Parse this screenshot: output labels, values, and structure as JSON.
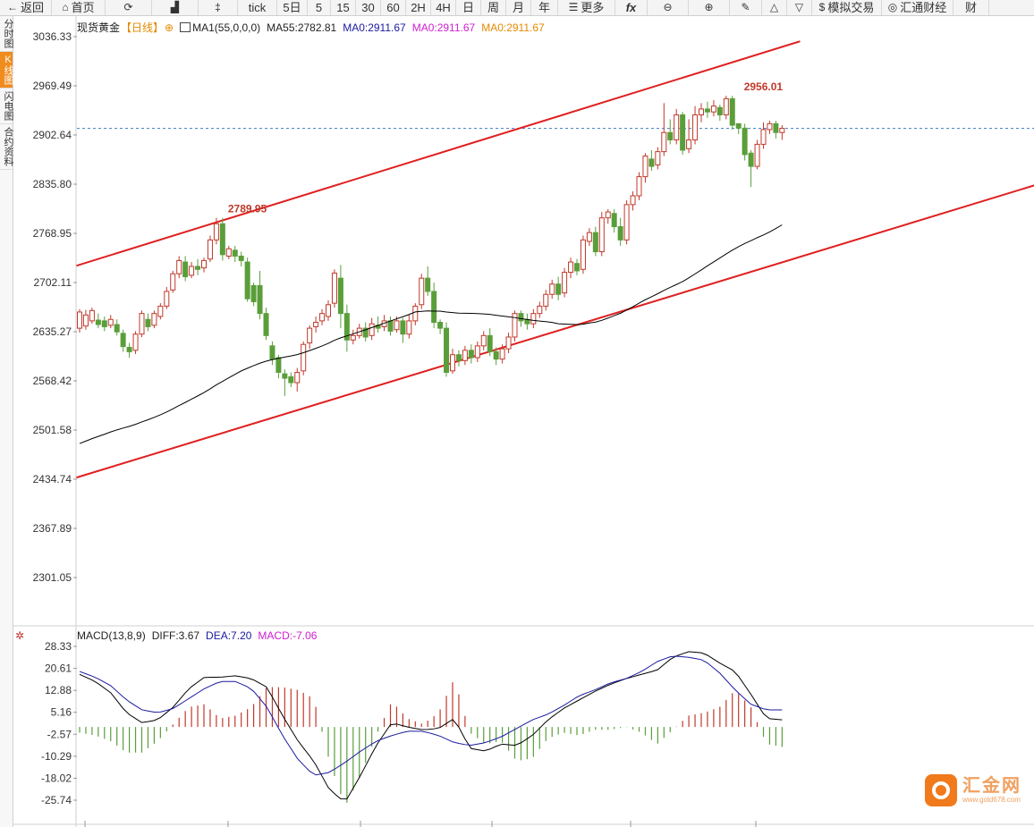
{
  "toolbar": [
    {
      "icon": "←",
      "label": "返回",
      "name": "back-button",
      "w": 58
    },
    {
      "icon": "⌂",
      "label": "首页",
      "name": "home-button",
      "w": 60
    },
    {
      "icon": "⟳",
      "label": "",
      "name": "refresh-button",
      "w": 52
    },
    {
      "icon": "▟",
      "label": "",
      "name": "bar-chart-button",
      "w": 52
    },
    {
      "icon": "‡",
      "label": "",
      "name": "candle-chart-button",
      "w": 44
    },
    {
      "icon": "",
      "label": "tick",
      "name": "period-tick",
      "w": 44
    },
    {
      "icon": "",
      "label": "5日",
      "name": "period-5day",
      "w": 34
    },
    {
      "icon": "",
      "label": "5",
      "name": "period-5",
      "w": 26
    },
    {
      "icon": "",
      "label": "15",
      "name": "period-15",
      "w": 28
    },
    {
      "icon": "",
      "label": "30",
      "name": "period-30",
      "w": 28
    },
    {
      "icon": "",
      "label": "60",
      "name": "period-60",
      "w": 28
    },
    {
      "icon": "",
      "label": "2H",
      "name": "period-2h",
      "w": 28
    },
    {
      "icon": "",
      "label": "4H",
      "name": "period-4h",
      "w": 28
    },
    {
      "icon": "",
      "label": "日",
      "name": "period-day",
      "w": 28
    },
    {
      "icon": "",
      "label": "周",
      "name": "period-week",
      "w": 28
    },
    {
      "icon": "",
      "label": "月",
      "name": "period-month",
      "w": 28
    },
    {
      "icon": "",
      "label": "年",
      "name": "period-year",
      "w": 30
    },
    {
      "icon": "☰",
      "label": "更多",
      "name": "more-button",
      "w": 64
    },
    {
      "icon": "",
      "label": "fx",
      "name": "formula-button",
      "w": 36
    },
    {
      "icon": "⊖",
      "label": "",
      "name": "zoom-out-button",
      "w": 46
    },
    {
      "icon": "⊕",
      "label": "",
      "name": "zoom-in-button",
      "w": 46
    },
    {
      "icon": "✎",
      "label": "",
      "name": "draw-button",
      "w": 36
    },
    {
      "icon": "△",
      "label": "",
      "name": "triangle-button",
      "w": 28
    },
    {
      "icon": "▽",
      "label": "",
      "name": "down-button",
      "w": 28
    },
    {
      "icon": "$",
      "label": "模拟交易",
      "name": "sim-trade-button",
      "w": 78
    },
    {
      "icon": "◎",
      "label": "汇通财经",
      "name": "huitong-button",
      "w": 80
    },
    {
      "icon": "",
      "label": "财",
      "name": "finance-button",
      "w": 40
    }
  ],
  "sidebar": [
    {
      "label": "分时图",
      "active": false
    },
    {
      "label": "K线图",
      "active": true
    },
    {
      "label": "闪电图",
      "active": false
    },
    {
      "label": "合约资料",
      "active": false
    }
  ],
  "legend": {
    "symbol": "现货黄金",
    "period": "【日线】",
    "ma1": "MA1(55,0,0,0)",
    "ma55": "MA55:2782.81",
    "ma0a": "MA0:2911.67",
    "ma0b": "MA0:2911.67",
    "ma0c": "MA0:2911.67"
  },
  "macd_legend": {
    "name": "MACD(13,8,9)",
    "diff": "DIFF:3.67",
    "dea": "DEA:7.20",
    "macd": "MACD:-7.06"
  },
  "price_axis": [
    "3036.33",
    "2969.49",
    "2902.64",
    "2835.80",
    "2768.95",
    "2702.11",
    "2635.27",
    "2568.42",
    "2501.58",
    "2434.74",
    "2367.89",
    "2301.05"
  ],
  "macd_axis": [
    "28.33",
    "20.61",
    "12.88",
    "5.16",
    "-2.57",
    "-10.29",
    "-18.02",
    "-25.74"
  ],
  "annotations": {
    "high": "2956.01",
    "left_high": "2789.95"
  },
  "colors": {
    "up": "#c0392b",
    "down": "#5a9e3a",
    "ma": "#000000",
    "channel": "#e02020",
    "diff": "#000000",
    "dea": "#1a1aa0",
    "ref": "#3a7bc8"
  },
  "watermark": {
    "name": "汇金网",
    "url": "www.gold678.com"
  },
  "chart_data": {
    "type": "candlestick",
    "title": "现货黄金 【日线】",
    "ylim": [
      2270,
      3050
    ],
    "last_price": 2911.67,
    "ma55_last": 2782.81,
    "candles": [
      [
        2640,
        2662,
        2634,
        2666
      ],
      [
        2643,
        2658,
        2638,
        2665
      ],
      [
        2650,
        2664,
        2646,
        2668
      ],
      [
        2651,
        2645,
        2640,
        2660
      ],
      [
        2650,
        2642,
        2636,
        2656
      ],
      [
        2644,
        2652,
        2640,
        2658
      ],
      [
        2645,
        2635,
        2630,
        2652
      ],
      [
        2633,
        2615,
        2608,
        2638
      ],
      [
        2614,
        2608,
        2600,
        2620
      ],
      [
        2610,
        2632,
        2605,
        2636
      ],
      [
        2632,
        2660,
        2628,
        2664
      ],
      [
        2652,
        2642,
        2636,
        2660
      ],
      [
        2644,
        2660,
        2640,
        2664
      ],
      [
        2656,
        2670,
        2652,
        2674
      ],
      [
        2670,
        2690,
        2666,
        2696
      ],
      [
        2692,
        2714,
        2688,
        2718
      ],
      [
        2714,
        2732,
        2708,
        2738
      ],
      [
        2730,
        2710,
        2704,
        2738
      ],
      [
        2712,
        2724,
        2708,
        2730
      ],
      [
        2724,
        2720,
        2712,
        2734
      ],
      [
        2722,
        2732,
        2716,
        2736
      ],
      [
        2734,
        2760,
        2730,
        2766
      ],
      [
        2760,
        2782,
        2754,
        2790
      ],
      [
        2782,
        2740,
        2732,
        2790
      ],
      [
        2738,
        2748,
        2734,
        2752
      ],
      [
        2746,
        2738,
        2730,
        2752
      ],
      [
        2738,
        2732,
        2724,
        2744
      ],
      [
        2730,
        2680,
        2676,
        2736
      ],
      [
        2698,
        2676,
        2670,
        2702
      ],
      [
        2698,
        2660,
        2652,
        2718
      ],
      [
        2660,
        2630,
        2624,
        2668
      ],
      [
        2616,
        2598,
        2590,
        2622
      ],
      [
        2600,
        2580,
        2572,
        2604
      ],
      [
        2578,
        2572,
        2548,
        2584
      ],
      [
        2574,
        2566,
        2560,
        2580
      ],
      [
        2566,
        2580,
        2554,
        2586
      ],
      [
        2582,
        2618,
        2576,
        2622
      ],
      [
        2620,
        2640,
        2612,
        2644
      ],
      [
        2642,
        2648,
        2634,
        2656
      ],
      [
        2650,
        2660,
        2644,
        2666
      ],
      [
        2656,
        2672,
        2650,
        2678
      ],
      [
        2674,
        2715,
        2668,
        2720
      ],
      [
        2708,
        2660,
        2640,
        2726
      ],
      [
        2660,
        2624,
        2608,
        2672
      ],
      [
        2624,
        2630,
        2618,
        2638
      ],
      [
        2630,
        2640,
        2626,
        2646
      ],
      [
        2640,
        2628,
        2622,
        2648
      ],
      [
        2630,
        2646,
        2624,
        2654
      ],
      [
        2644,
        2640,
        2634,
        2656
      ],
      [
        2642,
        2650,
        2636,
        2658
      ],
      [
        2650,
        2636,
        2630,
        2656
      ],
      [
        2638,
        2650,
        2634,
        2656
      ],
      [
        2650,
        2632,
        2620,
        2654
      ],
      [
        2632,
        2650,
        2626,
        2658
      ],
      [
        2650,
        2670,
        2644,
        2674
      ],
      [
        2672,
        2708,
        2666,
        2714
      ],
      [
        2708,
        2690,
        2684,
        2724
      ],
      [
        2690,
        2648,
        2640,
        2702
      ],
      [
        2648,
        2640,
        2632,
        2652
      ],
      [
        2640,
        2580,
        2574,
        2648
      ],
      [
        2582,
        2604,
        2578,
        2612
      ],
      [
        2604,
        2596,
        2588,
        2610
      ],
      [
        2596,
        2610,
        2590,
        2616
      ],
      [
        2610,
        2600,
        2592,
        2618
      ],
      [
        2600,
        2616,
        2594,
        2622
      ],
      [
        2616,
        2630,
        2610,
        2636
      ],
      [
        2630,
        2608,
        2602,
        2640
      ],
      [
        2608,
        2598,
        2590,
        2614
      ],
      [
        2598,
        2612,
        2592,
        2618
      ],
      [
        2612,
        2628,
        2606,
        2634
      ],
      [
        2628,
        2660,
        2622,
        2664
      ],
      [
        2660,
        2650,
        2642,
        2664
      ],
      [
        2652,
        2646,
        2638,
        2660
      ],
      [
        2646,
        2660,
        2640,
        2666
      ],
      [
        2660,
        2670,
        2654,
        2676
      ],
      [
        2670,
        2686,
        2664,
        2692
      ],
      [
        2686,
        2700,
        2680,
        2706
      ],
      [
        2700,
        2686,
        2678,
        2710
      ],
      [
        2688,
        2716,
        2682,
        2722
      ],
      [
        2716,
        2730,
        2708,
        2736
      ],
      [
        2728,
        2718,
        2712,
        2734
      ],
      [
        2720,
        2760,
        2714,
        2766
      ],
      [
        2758,
        2770,
        2752,
        2776
      ],
      [
        2770,
        2744,
        2738,
        2778
      ],
      [
        2744,
        2790,
        2738,
        2798
      ],
      [
        2790,
        2798,
        2782,
        2802
      ],
      [
        2796,
        2778,
        2770,
        2802
      ],
      [
        2778,
        2760,
        2752,
        2790
      ],
      [
        2760,
        2808,
        2754,
        2814
      ],
      [
        2808,
        2820,
        2800,
        2826
      ],
      [
        2820,
        2846,
        2814,
        2852
      ],
      [
        2846,
        2874,
        2838,
        2878
      ],
      [
        2870,
        2860,
        2854,
        2882
      ],
      [
        2862,
        2880,
        2856,
        2886
      ],
      [
        2880,
        2906,
        2874,
        2946
      ],
      [
        2906,
        2896,
        2890,
        2924
      ],
      [
        2896,
        2930,
        2890,
        2938
      ],
      [
        2930,
        2882,
        2876,
        2934
      ],
      [
        2884,
        2896,
        2878,
        2924
      ],
      [
        2896,
        2930,
        2890,
        2942
      ],
      [
        2930,
        2938,
        2920,
        2946
      ],
      [
        2938,
        2934,
        2926,
        2948
      ],
      [
        2934,
        2942,
        2928,
        2950
      ],
      [
        2940,
        2930,
        2922,
        2944
      ],
      [
        2930,
        2952,
        2924,
        2956
      ],
      [
        2952,
        2916,
        2910,
        2956
      ],
      [
        2918,
        2912,
        2904,
        2918
      ],
      [
        2912,
        2876,
        2868,
        2918
      ],
      [
        2878,
        2860,
        2832,
        2882
      ],
      [
        2860,
        2890,
        2856,
        2896
      ],
      [
        2890,
        2910,
        2884,
        2920
      ],
      [
        2910,
        2918,
        2904,
        2922
      ],
      [
        2918,
        2906,
        2898,
        2922
      ],
      [
        2906,
        2911.67,
        2896,
        2916
      ]
    ],
    "macd": {
      "diff": [
        18.5,
        16,
        12,
        5,
        1.5,
        2.5,
        7,
        13.5,
        17.5,
        17.5,
        18,
        17,
        14,
        4,
        -5,
        -12,
        -22,
        -26.5,
        -17,
        -6.5,
        1.5,
        0,
        -1,
        -0.5,
        3,
        -7.5,
        -8.5,
        -6,
        -6.5,
        -3,
        2.5,
        6.5,
        9.5,
        12.5,
        15,
        17,
        18.5,
        20,
        24.5,
        26.5,
        26,
        22.5,
        19.5,
        11.5,
        3,
        2.5
      ],
      "dea": [
        19.5,
        17.5,
        14.5,
        9.5,
        6,
        5,
        6.5,
        10,
        13.5,
        16,
        16,
        13.5,
        7,
        -3,
        -11.5,
        -17,
        -16,
        -12.5,
        -8.5,
        -5,
        -3,
        -1.5,
        -1.5,
        -3,
        -5.5,
        -6.5,
        -5.5,
        -3.5,
        -0.5,
        2.5,
        4.5,
        7.5,
        11,
        13,
        15.5,
        17,
        19.5,
        23,
        25,
        24.5,
        23.5,
        19,
        13,
        8,
        6,
        6
      ]
    }
  }
}
